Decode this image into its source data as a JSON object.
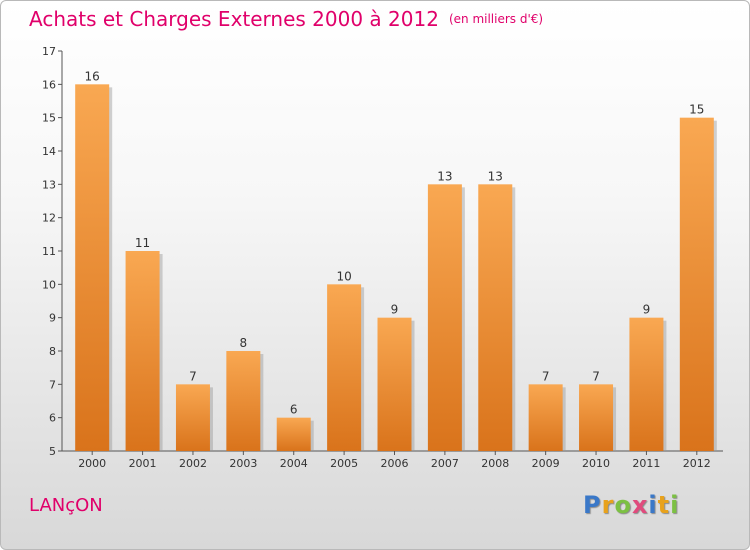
{
  "title": "Achats et Charges Externes 2000 à 2012",
  "unit": "(en milliers d'€)",
  "place": "LANçON",
  "logo": {
    "letters": [
      "P",
      "r",
      "o",
      "x",
      "i",
      "t",
      "i"
    ],
    "colors": [
      "#3a78c8",
      "#e8a21c",
      "#7cc043",
      "#e04b7d",
      "#3a78c8",
      "#e8a21c",
      "#7cc043"
    ]
  },
  "colors": {
    "bar_light": "#f9a852",
    "bar_dark": "#d9731b",
    "title": "#e0006a"
  },
  "chart_data": {
    "type": "bar",
    "title": "Achats et Charges Externes 2000 à 2012",
    "categories": [
      "2000",
      "2001",
      "2002",
      "2003",
      "2004",
      "2005",
      "2006",
      "2007",
      "2008",
      "2009",
      "2010",
      "2011",
      "2012"
    ],
    "values": [
      16,
      11,
      7,
      8,
      6,
      10,
      9,
      13,
      13,
      7,
      7,
      9,
      15
    ],
    "ylim": [
      5,
      17
    ],
    "yticks": [
      5,
      6,
      7,
      8,
      9,
      10,
      11,
      12,
      13,
      14,
      15,
      16,
      17
    ],
    "grid": false
  }
}
